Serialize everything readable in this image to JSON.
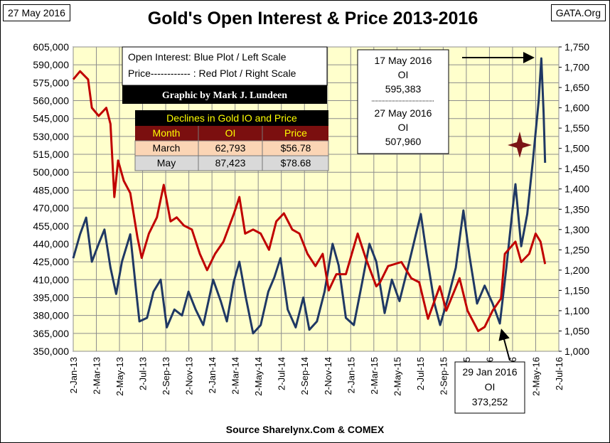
{
  "header": {
    "date_label": "27 May 2016",
    "title": "Gold's Open Interest & Price 2013-2016",
    "site_label": "GATA.Org",
    "source": "Source Sharelynx.Com & COMEX"
  },
  "legend": {
    "line1": "Open Interest:  Blue Plot / Left Scale",
    "line2": "Price------------ : Red Plot / Right Scale",
    "credit": "Graphic by Mark J. Lundeen"
  },
  "declines_table": {
    "title": "Declines in Gold IO and Price",
    "headers": [
      "Month",
      "OI",
      "Price"
    ],
    "rows": [
      [
        "March",
        "62,793",
        "$56.78"
      ],
      [
        "May",
        "87,423",
        "$78.68"
      ]
    ]
  },
  "annotations": {
    "top_box": [
      "17 May 2016",
      "OI",
      "595,383",
      "27 May 2016",
      "OI",
      "507,960"
    ],
    "bottom_box": [
      "29 Jan 2016",
      "OI",
      "373,252"
    ]
  },
  "colors": {
    "plot_bg": "#ffffcc",
    "oi_line": "#1f3864",
    "price_line": "#c00000",
    "table_title_bg": "#000000",
    "table_header_bg": "#7b0f0f",
    "row1_bg": "#fbd5b5",
    "row2_bg": "#d9d9d9",
    "star": "#7b1416"
  },
  "chart_data": {
    "type": "line",
    "title": "Gold's Open Interest & Price 2013-2016",
    "x_tick_labels": [
      "2-Jan-13",
      "2-Mar-13",
      "2-May-13",
      "2-Jul-13",
      "2-Sep-13",
      "2-Nov-13",
      "2-Jan-14",
      "2-Mar-14",
      "2-May-14",
      "2-Jul-14",
      "2-Sep-14",
      "2-Nov-14",
      "2-Jan-15",
      "2-Mar-15",
      "2-May-15",
      "2-Jul-15",
      "2-Sep-15",
      "2-Nov-15",
      "2-Jan-16",
      "2-Mar-16",
      "2-May-16",
      "2-Jul-16"
    ],
    "x_range": [
      "2013-01-02",
      "2016-07-02"
    ],
    "y_left": {
      "label": "Open Interest",
      "range": [
        350000,
        605000
      ],
      "tick_labels": [
        "350,000",
        "365,000",
        "380,000",
        "395,000",
        "410,000",
        "425,000",
        "440,000",
        "455,000",
        "470,000",
        "485,000",
        "500,000",
        "515,000",
        "530,000",
        "545,000",
        "560,000",
        "575,000",
        "590,000",
        "605,000"
      ]
    },
    "y_right": {
      "label": "Price",
      "range": [
        1000,
        1750
      ],
      "tick_labels": [
        "1,000",
        "1,050",
        "1,100",
        "1,150",
        "1,200",
        "1,250",
        "1,300",
        "1,350",
        "1,400",
        "1,450",
        "1,500",
        "1,550",
        "1,600",
        "1,650",
        "1,700",
        "1,750"
      ]
    },
    "grid": true,
    "series": [
      {
        "name": "Open Interest",
        "axis": "left",
        "points": [
          [
            "2013-01-02",
            428000
          ],
          [
            "2013-01-20",
            448000
          ],
          [
            "2013-02-05",
            462000
          ],
          [
            "2013-02-20",
            425000
          ],
          [
            "2013-03-10",
            440000
          ],
          [
            "2013-03-25",
            452000
          ],
          [
            "2013-04-10",
            420000
          ],
          [
            "2013-04-25",
            398000
          ],
          [
            "2013-05-10",
            425000
          ],
          [
            "2013-06-01",
            448000
          ],
          [
            "2013-06-15",
            405000
          ],
          [
            "2013-06-25",
            375000
          ],
          [
            "2013-07-15",
            378000
          ],
          [
            "2013-08-01",
            400000
          ],
          [
            "2013-08-20",
            410000
          ],
          [
            "2013-09-05",
            370000
          ],
          [
            "2013-09-25",
            385000
          ],
          [
            "2013-10-15",
            380000
          ],
          [
            "2013-11-01",
            400000
          ],
          [
            "2013-11-20",
            385000
          ],
          [
            "2013-12-10",
            372000
          ],
          [
            "2014-01-05",
            410000
          ],
          [
            "2014-01-25",
            392000
          ],
          [
            "2014-02-10",
            375000
          ],
          [
            "2014-02-28",
            408000
          ],
          [
            "2014-03-15",
            425000
          ],
          [
            "2014-04-01",
            395000
          ],
          [
            "2014-04-20",
            365000
          ],
          [
            "2014-05-10",
            372000
          ],
          [
            "2014-05-30",
            400000
          ],
          [
            "2014-06-15",
            412000
          ],
          [
            "2014-07-01",
            428000
          ],
          [
            "2014-07-20",
            385000
          ],
          [
            "2014-08-10",
            370000
          ],
          [
            "2014-08-30",
            395000
          ],
          [
            "2014-09-15",
            368000
          ],
          [
            "2014-10-05",
            375000
          ],
          [
            "2014-10-25",
            400000
          ],
          [
            "2014-11-15",
            440000
          ],
          [
            "2014-12-01",
            422000
          ],
          [
            "2014-12-20",
            378000
          ],
          [
            "2015-01-10",
            372000
          ],
          [
            "2015-02-01",
            408000
          ],
          [
            "2015-02-20",
            440000
          ],
          [
            "2015-03-10",
            425000
          ],
          [
            "2015-04-01",
            382000
          ],
          [
            "2015-04-20",
            410000
          ],
          [
            "2015-05-10",
            392000
          ],
          [
            "2015-06-01",
            420000
          ],
          [
            "2015-06-20",
            445000
          ],
          [
            "2015-07-05",
            465000
          ],
          [
            "2015-07-20",
            432000
          ],
          [
            "2015-08-10",
            390000
          ],
          [
            "2015-08-25",
            372000
          ],
          [
            "2015-09-15",
            395000
          ],
          [
            "2015-10-05",
            420000
          ],
          [
            "2015-10-25",
            468000
          ],
          [
            "2015-11-10",
            430000
          ],
          [
            "2015-11-30",
            390000
          ],
          [
            "2015-12-20",
            405000
          ],
          [
            "2016-01-10",
            390000
          ],
          [
            "2016-01-29",
            373252
          ],
          [
            "2016-02-15",
            420000
          ],
          [
            "2016-03-01",
            465000
          ],
          [
            "2016-03-10",
            490000
          ],
          [
            "2016-03-25",
            438000
          ],
          [
            "2016-04-10",
            465000
          ],
          [
            "2016-04-25",
            510000
          ],
          [
            "2016-05-10",
            560000
          ],
          [
            "2016-05-17",
            595383
          ],
          [
            "2016-05-23",
            550000
          ],
          [
            "2016-05-27",
            507960
          ]
        ]
      },
      {
        "name": "Price",
        "axis": "right",
        "points": [
          [
            "2013-01-02",
            1670
          ],
          [
            "2013-01-20",
            1690
          ],
          [
            "2013-02-10",
            1670
          ],
          [
            "2013-02-20",
            1600
          ],
          [
            "2013-03-10",
            1580
          ],
          [
            "2013-03-30",
            1600
          ],
          [
            "2013-04-10",
            1560
          ],
          [
            "2013-04-20",
            1380
          ],
          [
            "2013-04-30",
            1470
          ],
          [
            "2013-05-15",
            1420
          ],
          [
            "2013-06-01",
            1390
          ],
          [
            "2013-06-20",
            1280
          ],
          [
            "2013-07-01",
            1230
          ],
          [
            "2013-07-20",
            1290
          ],
          [
            "2013-08-10",
            1330
          ],
          [
            "2013-08-28",
            1410
          ],
          [
            "2013-09-15",
            1320
          ],
          [
            "2013-10-01",
            1330
          ],
          [
            "2013-10-20",
            1310
          ],
          [
            "2013-11-10",
            1300
          ],
          [
            "2013-12-01",
            1240
          ],
          [
            "2013-12-20",
            1200
          ],
          [
            "2014-01-10",
            1240
          ],
          [
            "2014-02-01",
            1270
          ],
          [
            "2014-03-01",
            1340
          ],
          [
            "2014-03-15",
            1380
          ],
          [
            "2014-03-30",
            1290
          ],
          [
            "2014-04-20",
            1300
          ],
          [
            "2014-05-10",
            1290
          ],
          [
            "2014-06-01",
            1250
          ],
          [
            "2014-06-20",
            1320
          ],
          [
            "2014-07-10",
            1340
          ],
          [
            "2014-08-01",
            1300
          ],
          [
            "2014-08-20",
            1290
          ],
          [
            "2014-09-10",
            1240
          ],
          [
            "2014-10-01",
            1210
          ],
          [
            "2014-10-20",
            1240
          ],
          [
            "2014-11-05",
            1150
          ],
          [
            "2014-11-25",
            1190
          ],
          [
            "2014-12-20",
            1190
          ],
          [
            "2015-01-20",
            1290
          ],
          [
            "2015-02-10",
            1230
          ],
          [
            "2015-03-10",
            1160
          ],
          [
            "2015-03-20",
            1170
          ],
          [
            "2015-04-10",
            1210
          ],
          [
            "2015-05-15",
            1220
          ],
          [
            "2015-06-10",
            1180
          ],
          [
            "2015-07-01",
            1170
          ],
          [
            "2015-07-24",
            1080
          ],
          [
            "2015-08-24",
            1160
          ],
          [
            "2015-09-10",
            1100
          ],
          [
            "2015-10-15",
            1180
          ],
          [
            "2015-11-05",
            1100
          ],
          [
            "2015-12-03",
            1050
          ],
          [
            "2015-12-20",
            1060
          ],
          [
            "2016-01-10",
            1100
          ],
          [
            "2016-02-01",
            1130
          ],
          [
            "2016-02-11",
            1240
          ],
          [
            "2016-03-10",
            1270
          ],
          [
            "2016-03-25",
            1220
          ],
          [
            "2016-04-15",
            1240
          ],
          [
            "2016-05-02",
            1290
          ],
          [
            "2016-05-15",
            1270
          ],
          [
            "2016-05-27",
            1215
          ]
        ]
      }
    ]
  }
}
